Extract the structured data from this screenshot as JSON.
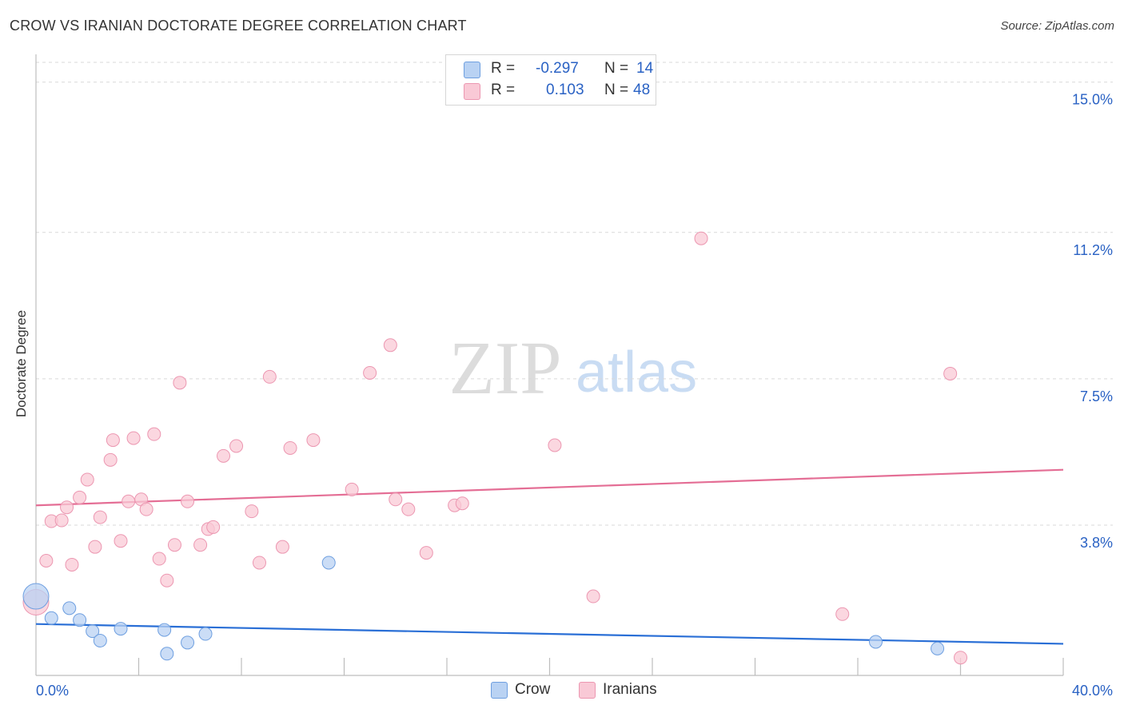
{
  "header": {
    "title": "CROW VS IRANIAN DOCTORATE DEGREE CORRELATION CHART",
    "source": "Source: ZipAtlas.com"
  },
  "watermark": {
    "zip": "ZIP",
    "atlas": "atlas"
  },
  "legend_top": {
    "rows": [
      {
        "r_label": "R =",
        "r_value": "-0.297",
        "n_label": "N =",
        "n_value": "14"
      },
      {
        "r_label": "R =",
        "r_value": "0.103",
        "n_label": "N =",
        "n_value": "48"
      }
    ]
  },
  "legend_bottom": {
    "items": [
      "Crow",
      "Iranians"
    ]
  },
  "colors": {
    "crow_fill": "#b9d2f3",
    "crow_stroke": "#6e9fe0",
    "crow_line": "#2a6fd6",
    "iranian_fill": "#f9c9d6",
    "iranian_stroke": "#ec97b1",
    "iranian_line": "#e46e95",
    "tick_label": "#2a62c4",
    "grid": "#d9d9d9"
  },
  "chart_data": {
    "type": "scatter",
    "title": "CROW VS IRANIAN DOCTORATE DEGREE CORRELATION CHART",
    "xlabel": "",
    "ylabel": "Doctorate Degree",
    "xlim": [
      0,
      40
    ],
    "ylim": [
      0,
      15.5
    ],
    "x_tick_labels": [
      {
        "value": 0,
        "label": "0.0%"
      },
      {
        "value": 40,
        "label": "40.0%"
      }
    ],
    "y_tick_labels": [
      {
        "value": 3.8,
        "label": "3.8%"
      },
      {
        "value": 7.5,
        "label": "7.5%"
      },
      {
        "value": 11.2,
        "label": "11.2%"
      },
      {
        "value": 15.0,
        "label": "15.0%"
      }
    ],
    "series": [
      {
        "name": "Crow",
        "r": -0.297,
        "n": 14,
        "trend": {
          "x": [
            0,
            40
          ],
          "y": [
            1.3,
            0.8
          ]
        },
        "points": [
          {
            "x": 0.0,
            "y": 2.0,
            "big": true
          },
          {
            "x": 0.6,
            "y": 1.45
          },
          {
            "x": 1.3,
            "y": 1.7
          },
          {
            "x": 1.7,
            "y": 1.4
          },
          {
            "x": 2.2,
            "y": 1.12
          },
          {
            "x": 2.5,
            "y": 0.88
          },
          {
            "x": 3.3,
            "y": 1.18
          },
          {
            "x": 5.0,
            "y": 1.15
          },
          {
            "x": 5.1,
            "y": 0.55
          },
          {
            "x": 5.9,
            "y": 0.83
          },
          {
            "x": 6.6,
            "y": 1.05
          },
          {
            "x": 11.4,
            "y": 2.85
          },
          {
            "x": 32.7,
            "y": 0.85
          },
          {
            "x": 35.1,
            "y": 0.68
          }
        ]
      },
      {
        "name": "Iranians",
        "r": 0.103,
        "n": 48,
        "trend": {
          "x": [
            0,
            40
          ],
          "y": [
            4.3,
            5.2
          ]
        },
        "points": [
          {
            "x": 0.0,
            "y": 1.85,
            "big": true
          },
          {
            "x": 0.4,
            "y": 2.9
          },
          {
            "x": 0.6,
            "y": 3.9
          },
          {
            "x": 1.0,
            "y": 3.92
          },
          {
            "x": 1.2,
            "y": 4.25
          },
          {
            "x": 1.4,
            "y": 2.8
          },
          {
            "x": 1.7,
            "y": 4.5
          },
          {
            "x": 2.0,
            "y": 4.95
          },
          {
            "x": 2.3,
            "y": 3.25
          },
          {
            "x": 2.5,
            "y": 4.0
          },
          {
            "x": 2.9,
            "y": 5.45
          },
          {
            "x": 3.0,
            "y": 5.95
          },
          {
            "x": 3.3,
            "y": 3.4
          },
          {
            "x": 3.6,
            "y": 4.4
          },
          {
            "x": 3.8,
            "y": 6.0
          },
          {
            "x": 4.1,
            "y": 4.45
          },
          {
            "x": 4.3,
            "y": 4.2
          },
          {
            "x": 4.6,
            "y": 6.1
          },
          {
            "x": 4.8,
            "y": 2.95
          },
          {
            "x": 5.1,
            "y": 2.4
          },
          {
            "x": 5.4,
            "y": 3.3
          },
          {
            "x": 5.6,
            "y": 7.4
          },
          {
            "x": 5.9,
            "y": 4.4
          },
          {
            "x": 6.4,
            "y": 3.3
          },
          {
            "x": 6.7,
            "y": 3.7
          },
          {
            "x": 6.9,
            "y": 3.75
          },
          {
            "x": 7.3,
            "y": 5.55
          },
          {
            "x": 7.8,
            "y": 5.8
          },
          {
            "x": 8.4,
            "y": 4.15
          },
          {
            "x": 8.7,
            "y": 2.85
          },
          {
            "x": 9.1,
            "y": 7.55
          },
          {
            "x": 9.6,
            "y": 3.25
          },
          {
            "x": 9.9,
            "y": 5.75
          },
          {
            "x": 10.8,
            "y": 5.95
          },
          {
            "x": 12.3,
            "y": 4.7
          },
          {
            "x": 13.0,
            "y": 7.65
          },
          {
            "x": 13.8,
            "y": 8.35
          },
          {
            "x": 14.0,
            "y": 4.45
          },
          {
            "x": 14.5,
            "y": 4.2
          },
          {
            "x": 15.2,
            "y": 3.1
          },
          {
            "x": 16.3,
            "y": 4.3
          },
          {
            "x": 16.6,
            "y": 4.35
          },
          {
            "x": 20.2,
            "y": 5.82
          },
          {
            "x": 21.7,
            "y": 2.0
          },
          {
            "x": 25.9,
            "y": 11.05
          },
          {
            "x": 31.4,
            "y": 1.55
          },
          {
            "x": 35.6,
            "y": 7.63
          },
          {
            "x": 36.0,
            "y": 0.45
          }
        ]
      }
    ]
  }
}
